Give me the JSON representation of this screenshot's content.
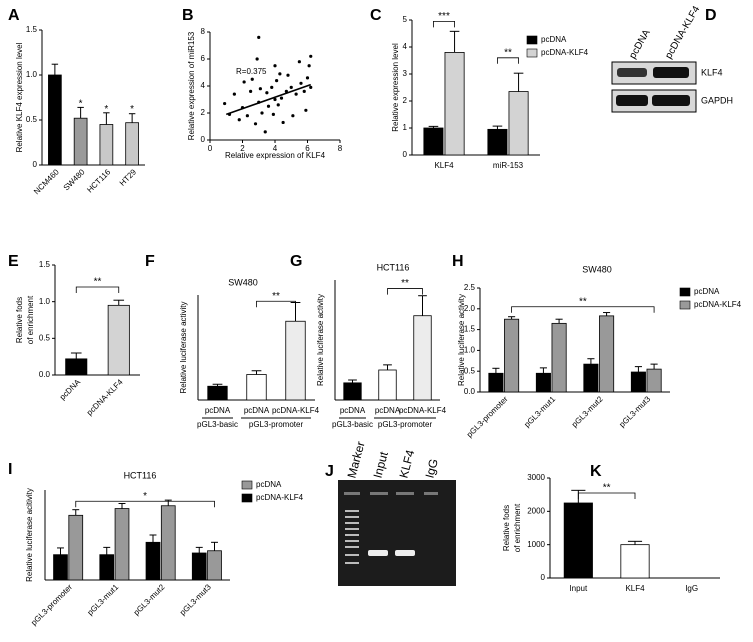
{
  "chart_data": [
    {
      "type": "bar",
      "panel": "A",
      "y_label": "Relative KLF4 expression level",
      "categories": [
        "NCM460",
        "SW480",
        "HCT116",
        "HT29"
      ],
      "values": [
        1.0,
        0.52,
        0.45,
        0.47
      ],
      "errors": [
        0.12,
        0.12,
        0.13,
        0.1
      ],
      "colors": [
        "#000000",
        "#9a9a9a",
        "#c8c8c8",
        "#c8c8c8"
      ],
      "annotations": [
        "*",
        "*",
        "*"
      ],
      "ylim": [
        0,
        1.5
      ],
      "yticks": [
        0,
        0.5,
        {
          "value": 1,
          "label": "1.0"
        },
        1.5
      ]
    },
    {
      "type": "scatter",
      "panel": "B",
      "x_label": "Relative expression of KLF4",
      "y_label": "Relative expression of miR153",
      "x": [
        0.9,
        1.2,
        1.5,
        1.8,
        2.0,
        2.1,
        2.3,
        2.5,
        2.6,
        2.8,
        3.0,
        3.0,
        3.1,
        3.2,
        3.4,
        3.5,
        3.6,
        3.8,
        3.9,
        4.0,
        4.0,
        4.1,
        4.2,
        4.3,
        4.5,
        4.7,
        4.8,
        5.0,
        5.1,
        5.3,
        5.5,
        5.6,
        5.8,
        5.9,
        6.0,
        6.1,
        6.2,
        6.2,
        2.9,
        4.4
      ],
      "y": [
        2.7,
        1.9,
        3.4,
        1.5,
        2.4,
        4.3,
        1.8,
        3.6,
        4.5,
        1.2,
        2.8,
        7.6,
        3.8,
        2.0,
        0.6,
        3.5,
        2.5,
        3.9,
        1.9,
        5.5,
        3.0,
        4.4,
        2.6,
        4.9,
        1.3,
        3.6,
        4.8,
        3.9,
        1.8,
        3.4,
        5.8,
        4.2,
        3.6,
        2.2,
        4.6,
        5.5,
        6.2,
        3.9,
        6.0,
        3.1
      ],
      "trendline": {
        "x": [
          1,
          6.2
        ],
        "y": [
          1.9,
          4.1
        ]
      },
      "annotations": [
        "R=0.375"
      ],
      "xlim": [
        0,
        8
      ],
      "xticks": [
        0,
        2,
        4,
        6,
        8
      ],
      "ylim": [
        0,
        8
      ],
      "yticks": [
        0,
        2,
        4,
        6,
        8
      ]
    },
    {
      "type": "bar",
      "panel": "C",
      "y_label": "Relative expression level",
      "categories": [
        "KLF4",
        "miR-153"
      ],
      "series": [
        {
          "name": "pcDNA",
          "color": "#000000",
          "values": [
            1.0,
            0.95
          ],
          "errors": [
            0.06,
            0.12
          ]
        },
        {
          "name": "pcDNA-KLF4",
          "color": "#d3d3d3",
          "values": [
            3.8,
            2.35
          ],
          "errors": [
            0.78,
            0.68
          ]
        }
      ],
      "annotations": [
        "***",
        "**"
      ],
      "ylim": [
        0,
        5
      ],
      "yticks": [
        0,
        1,
        2,
        3,
        4,
        5
      ]
    },
    {
      "type": "bar",
      "panel": "E",
      "y_label": [
        "Relative fods",
        "of enrichment"
      ],
      "categories": [
        "pcDNA",
        "pcDNA-KLF4"
      ],
      "values": [
        0.22,
        0.95
      ],
      "errors": [
        0.08,
        0.07
      ],
      "colors": [
        "#000000",
        "#d3d3d3"
      ],
      "annotations": [
        "**"
      ],
      "ylim": [
        0,
        1.5
      ],
      "yticks": [
        {
          "value": 0,
          "label": "0.0"
        },
        0.5,
        {
          "value": 1,
          "label": "1.0"
        },
        1.5
      ]
    },
    {
      "type": "bar",
      "panel": "F",
      "title": "SW480",
      "y_label": "Relative luciferase activity",
      "categories": [
        "pcDNA",
        "pcDNA",
        "pcDNA-KLF4"
      ],
      "group_labels": [
        "pGL3-basic",
        "pGL3-promoter"
      ],
      "values": [
        0.55,
        1.02,
        3.15
      ],
      "errors": [
        0.08,
        0.15,
        0.75
      ],
      "colors": [
        "#000000",
        "#ffffff",
        "#ececec"
      ],
      "annotations": [
        "**"
      ],
      "ylim": [
        0,
        4.2
      ]
    },
    {
      "type": "bar",
      "panel": "G",
      "title": "HCT116",
      "y_label": "Relative luciferase activity",
      "categories": [
        "pcDNA",
        "pcDNA",
        "pcDNA-KLF4"
      ],
      "group_labels": [
        "pGL3-basic",
        "pGL3-promoter"
      ],
      "values": [
        0.6,
        1.05,
        2.95
      ],
      "errors": [
        0.1,
        0.18,
        0.7
      ],
      "colors": [
        "#000000",
        "#ffffff",
        "#ececec"
      ],
      "annotations": [
        "**"
      ],
      "ylim": [
        0,
        4.2
      ]
    },
    {
      "type": "bar",
      "panel": "H",
      "title": "SW480",
      "y_label": "Relative luciferase activity",
      "categories": [
        "pGL3-promoter",
        "pGL3-mut1",
        "pGL3-mut2",
        "pGL3-mut3"
      ],
      "series": [
        {
          "name": "pcDNA",
          "color": "#000000",
          "values": [
            0.45,
            0.45,
            0.67,
            0.48
          ],
          "errors": [
            0.12,
            0.13,
            0.13,
            0.13
          ]
        },
        {
          "name": "pcDNA-KLF4",
          "color": "#999999",
          "values": [
            1.75,
            1.65,
            1.83,
            0.55
          ],
          "errors": [
            0.06,
            0.1,
            0.08,
            0.12
          ]
        }
      ],
      "annotations": [
        "**"
      ],
      "ylim": [
        0,
        2.5
      ],
      "yticks": [
        {
          "value": 0,
          "label": "0.0"
        },
        0.5,
        {
          "value": 1,
          "label": "1.0"
        },
        1.5,
        {
          "value": 2,
          "label": "2.0"
        },
        2.5
      ]
    },
    {
      "type": "bar",
      "panel": "I",
      "title": "HCT116",
      "y_label": "Relative luciferase acitivity",
      "categories": [
        "pGL3-promoter",
        "pGL3-mut1",
        "pGL3-mut2",
        "pGL3-mut3"
      ],
      "series": [
        {
          "name": "pcDNA",
          "color": "#999999",
          "values": [
            1.15,
            1.27,
            1.32,
            0.52
          ],
          "errors": [
            0.1,
            0.09,
            0.1,
            0.15
          ]
        },
        {
          "name": "pcDNA-KLF4",
          "color": "#000000",
          "values": [
            0.45,
            0.45,
            0.67,
            0.48
          ],
          "errors": [
            0.12,
            0.13,
            0.13,
            0.1
          ]
        }
      ],
      "annotations": [
        "*"
      ],
      "ylim": [
        0,
        1.6
      ]
    },
    {
      "type": "bar",
      "panel": "K",
      "y_label": [
        "Relative fods",
        "of enrichment"
      ],
      "categories": [
        "Input",
        "KLF4",
        "IgG"
      ],
      "values": [
        2250,
        1000,
        0
      ],
      "errors": [
        380,
        100,
        0
      ],
      "colors": [
        "#000000",
        "#ffffff",
        "#ffffff"
      ],
      "annotations": [
        "**"
      ],
      "ylim": [
        0,
        3000
      ],
      "yticks": [
        0,
        1000,
        2000,
        3000
      ]
    }
  ],
  "western_blot": {
    "panel": "D",
    "lanes": [
      "pcDNA",
      "pcDNA-KLF4"
    ],
    "bands": [
      "KLF4",
      "GAPDH"
    ]
  },
  "gel": {
    "panel": "J",
    "lanes": [
      "Marker",
      "Input",
      "KLF4",
      "IgG"
    ]
  }
}
